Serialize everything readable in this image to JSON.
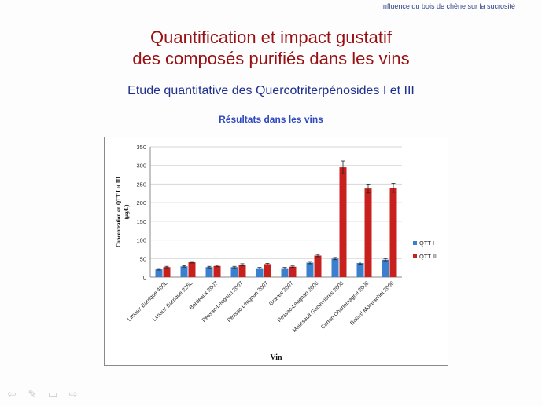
{
  "header": {
    "note": "Influence du bois de chêne sur la sucrosité"
  },
  "slide": {
    "title_line1": "Quantification et impact gustatif",
    "title_line2": "des composés purifiés dans les vins",
    "subtitle": "Etude quantitative des Quercotriterpénosides I et III",
    "results_label": "Résultats dans les vins"
  },
  "nav": {
    "icons": [
      "arrow-left-icon",
      "pen-icon",
      "menu-icon",
      "arrow-right-icon"
    ],
    "glyphs": [
      "⇦",
      "✎",
      "▭",
      "⇨"
    ]
  },
  "colors": {
    "title": "#9a0f12",
    "subtitle": "#1f2f8f",
    "qtt1": "#3b7fcf",
    "qtt3": "#c8201d"
  },
  "chart_data": {
    "type": "bar",
    "xlabel": "Vin",
    "ylabel_line1": "Concentration en QTT I et III",
    "ylabel_line2": "(µg/L)",
    "ylim": [
      0,
      350
    ],
    "yticks": [
      0,
      50,
      100,
      150,
      200,
      250,
      300,
      350
    ],
    "grid": true,
    "legend_position": "right",
    "categories": [
      "Limoux Barrique 400L",
      "Limoux Barrique 225L",
      "Bordeaux 2007",
      "Pessac-Léognan 2007",
      "Pessac-Léognan 2007",
      "Graves 2007",
      "Pessac-Léognan 2006",
      "Meursault Genevrières 2006",
      "Corton Charlemagne 2006",
      "Batard Montrachet 2006"
    ],
    "series": [
      {
        "name": "QTT I",
        "color": "#3b7fcf",
        "values": [
          21,
          29,
          27,
          27,
          24,
          24,
          39,
          50,
          38,
          47
        ],
        "errors": [
          2,
          2,
          2,
          2,
          2,
          2,
          3,
          3,
          3,
          3
        ]
      },
      {
        "name": "QTT III",
        "color": "#c8201d",
        "values": [
          27,
          40,
          30,
          33,
          35,
          28,
          58,
          295,
          238,
          240
        ],
        "errors": [
          2,
          2,
          2,
          3,
          2,
          2,
          3,
          17,
          12,
          12
        ]
      }
    ]
  }
}
